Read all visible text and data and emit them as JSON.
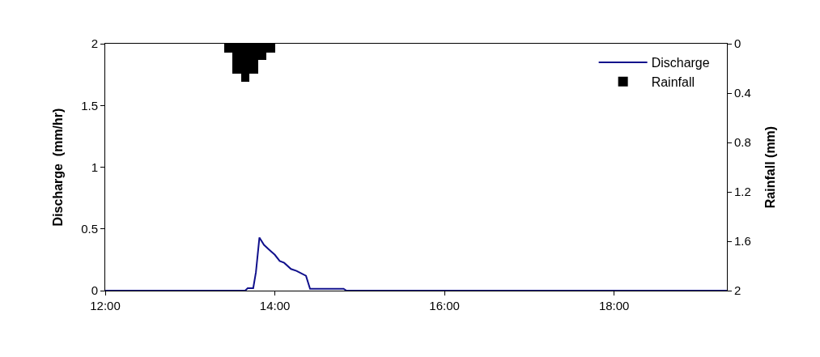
{
  "chart_data": {
    "type": "line",
    "xlabel": null,
    "ylabel": "Discharge  (mm/hr)",
    "y2label": "Rainfall (mm)",
    "xlim": [
      12,
      19.33
    ],
    "xticks": [
      {
        "value": 12,
        "label": "12:00"
      },
      {
        "value": 14,
        "label": "14:00"
      },
      {
        "value": 16,
        "label": "16:00"
      },
      {
        "value": 18,
        "label": "18:00"
      }
    ],
    "ylim": [
      0,
      2
    ],
    "yticks": [
      0,
      0.5,
      1,
      1.5,
      2
    ],
    "y2lim": [
      2,
      0
    ],
    "y2ticks": [
      0,
      0.4,
      0.8,
      1.2,
      1.6,
      2
    ],
    "grid": false,
    "legend": "top right",
    "marker": "none",
    "line_style": "solid",
    "series": [
      {
        "name": "Discharge",
        "color": "#10108c",
        "x": [
          12,
          13.65,
          13.68,
          13.745,
          13.777,
          13.818,
          13.872,
          13.92,
          14.0,
          14.057,
          14.11,
          14.19,
          14.255,
          14.367,
          14.415,
          14.81,
          14.845,
          19.33
        ],
        "values": [
          0,
          0,
          0.02,
          0.02,
          0.15,
          0.43,
          0.37,
          0.34,
          0.29,
          0.24,
          0.225,
          0.175,
          0.16,
          0.12,
          0.015,
          0.015,
          0,
          0
        ]
      },
      {
        "name": "Rainfall",
        "type": "bar",
        "axis": "y2",
        "color": "#000000",
        "x": [
          13.45,
          13.55,
          13.65,
          13.75,
          13.85,
          13.95
        ],
        "values": [
          0.07,
          0.24,
          0.31,
          0.24,
          0.13,
          0.07
        ]
      }
    ]
  }
}
